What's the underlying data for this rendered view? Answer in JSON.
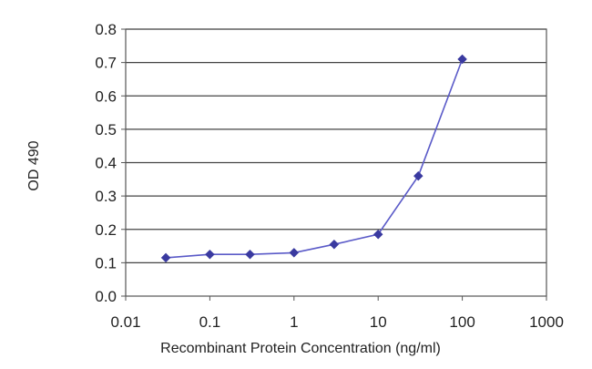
{
  "chart_data": {
    "type": "line",
    "title": "",
    "xlabel": "Recombinant Protein Concentration (ng/ml)",
    "ylabel": "OD 490",
    "x_scale": "log",
    "xlim": [
      0.01,
      1000
    ],
    "ylim": [
      0,
      0.8
    ],
    "x_ticks": [
      "0.01",
      "0.1",
      "1",
      "10",
      "100",
      "1000"
    ],
    "y_ticks": [
      "0.0",
      "0.1",
      "0.2",
      "0.3",
      "0.4",
      "0.5",
      "0.6",
      "0.7",
      "0.8"
    ],
    "grid": "horizontal",
    "legend": "none",
    "series": [
      {
        "color": "#3a3aa0",
        "marker": "diamond",
        "x": [
          0.03,
          0.1,
          0.3,
          1,
          3,
          10,
          30,
          100
        ],
        "y": [
          0.115,
          0.125,
          0.125,
          0.13,
          0.155,
          0.185,
          0.36,
          0.71
        ]
      }
    ]
  }
}
